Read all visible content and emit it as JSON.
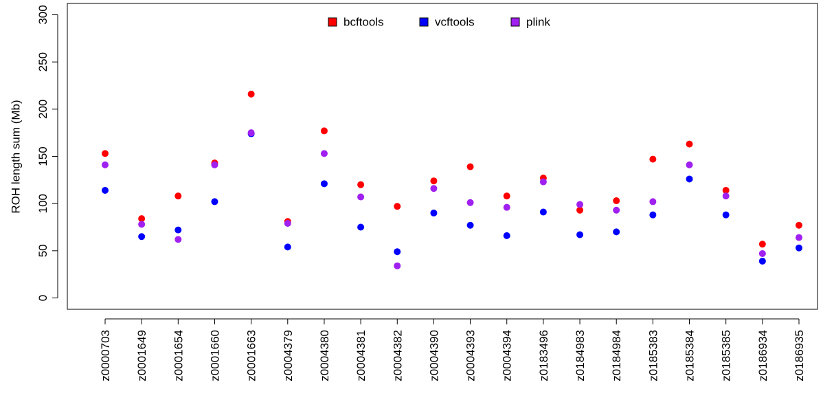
{
  "chart_data": {
    "type": "scatter",
    "y_label": "ROH length sum (Mb)",
    "categories": [
      "z0000703",
      "z0001649",
      "z0001654",
      "z0001660",
      "z0001663",
      "z0004379",
      "z0004380",
      "z0004381",
      "z0004382",
      "z0004390",
      "z0004393",
      "z0004394",
      "z0183496",
      "z0184983",
      "z0184984",
      "z0185383",
      "z0185384",
      "z0185385",
      "z0186934",
      "z0186935"
    ],
    "series": [
      {
        "name": "bcftools",
        "color": "#ff0000",
        "values": [
          153,
          84,
          108,
          143,
          216,
          81,
          177,
          120,
          97,
          124,
          139,
          108,
          127,
          93,
          103,
          147,
          163,
          114,
          57,
          77
        ]
      },
      {
        "name": "vcftools",
        "color": "#0000ff",
        "values": [
          114,
          65,
          72,
          102,
          174,
          54,
          121,
          75,
          49,
          90,
          77,
          66,
          91,
          67,
          70,
          88,
          126,
          88,
          39,
          53
        ]
      },
      {
        "name": "plink",
        "color": "#a020f0",
        "values": [
          141,
          78,
          62,
          141,
          175,
          79,
          153,
          107,
          34,
          116,
          101,
          96,
          123,
          99,
          93,
          102,
          141,
          108,
          47,
          64
        ]
      }
    ],
    "ylim": [
      -12,
      312
    ],
    "yticks": [
      0,
      50,
      100,
      150,
      200,
      250,
      300
    ],
    "legend": "top"
  }
}
